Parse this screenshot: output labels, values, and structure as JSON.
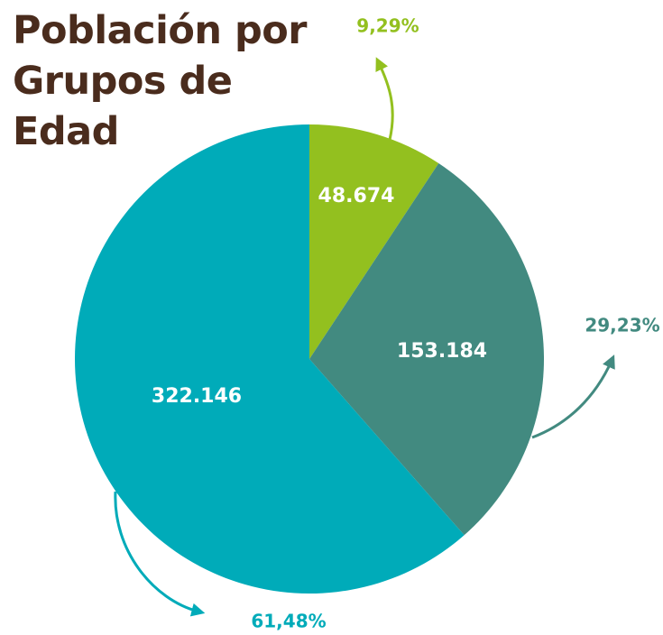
{
  "chart_data": {
    "type": "pie",
    "title": "Población por Grupos de Edad",
    "categories": [
      null,
      null,
      null
    ],
    "values": [
      48674,
      153184,
      322146
    ],
    "value_labels": [
      "48.674",
      "153.184",
      "322.146"
    ],
    "percentages": [
      9.29,
      29.23,
      61.48
    ],
    "percentage_labels": [
      "9,29%",
      "29,23%",
      "61,48%"
    ],
    "colors": [
      "#93c01f",
      "#428a80",
      "#00abb9"
    ]
  }
}
